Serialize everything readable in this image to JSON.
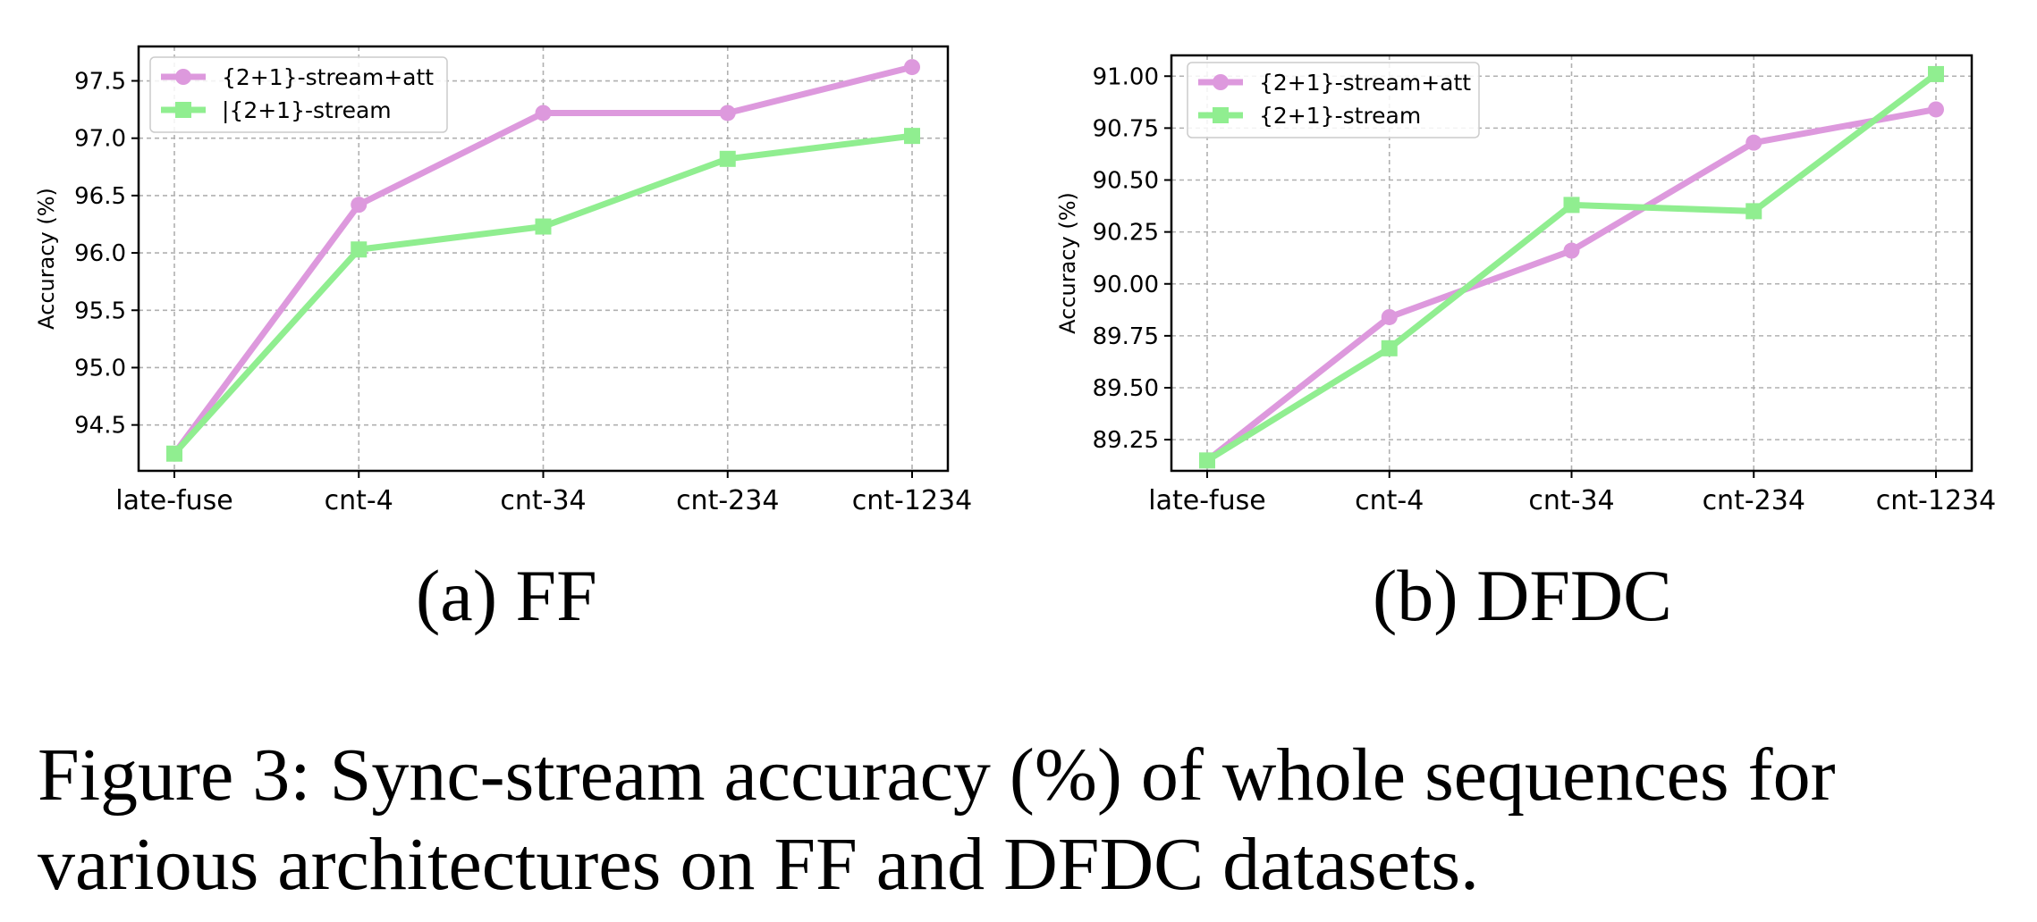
{
  "chart_data": [
    {
      "type": "line",
      "categories": [
        "late-fuse",
        "cnt-4",
        "cnt-34",
        "cnt-234",
        "cnt-1234"
      ],
      "series": [
        {
          "name": "{2+1}-stream+att",
          "values": [
            94.25,
            96.42,
            97.22,
            97.22,
            97.62
          ],
          "color": "#dd99dd",
          "marker": "circle"
        },
        {
          "name": "|{2+1}-stream",
          "values": [
            94.25,
            96.03,
            96.23,
            96.82,
            97.02
          ],
          "color": "#90ee90",
          "marker": "square"
        }
      ],
      "ylabel": "Accuracy (%)",
      "ylim": [
        94.1,
        97.8
      ],
      "yticks": [
        "94.5",
        "95.0",
        "95.5",
        "96.0",
        "96.5",
        "97.0",
        "97.5"
      ],
      "grid": true,
      "legend": "top-left",
      "subcaption": "(a) FF"
    },
    {
      "type": "line",
      "categories": [
        "late-fuse",
        "cnt-4",
        "cnt-34",
        "cnt-234",
        "cnt-1234"
      ],
      "series": [
        {
          "name": "{2+1}-stream+att",
          "values": [
            89.15,
            89.84,
            90.16,
            90.68,
            90.84
          ],
          "color": "#dd99dd",
          "marker": "circle"
        },
        {
          "name": "{2+1}-stream",
          "values": [
            89.15,
            89.69,
            90.38,
            90.35,
            91.01
          ],
          "color": "#90ee90",
          "marker": "square"
        }
      ],
      "ylabel": "Accuracy (%)",
      "ylim": [
        89.1,
        91.1
      ],
      "yticks": [
        "89.25",
        "89.50",
        "89.75",
        "90.00",
        "90.25",
        "90.50",
        "90.75",
        "91.00"
      ],
      "grid": true,
      "legend": "top-left",
      "subcaption": "(b) DFDC"
    }
  ],
  "caption": "Figure 3: Sync-stream accuracy (%) of whole sequences for various architectures on FF and DFDC datasets."
}
